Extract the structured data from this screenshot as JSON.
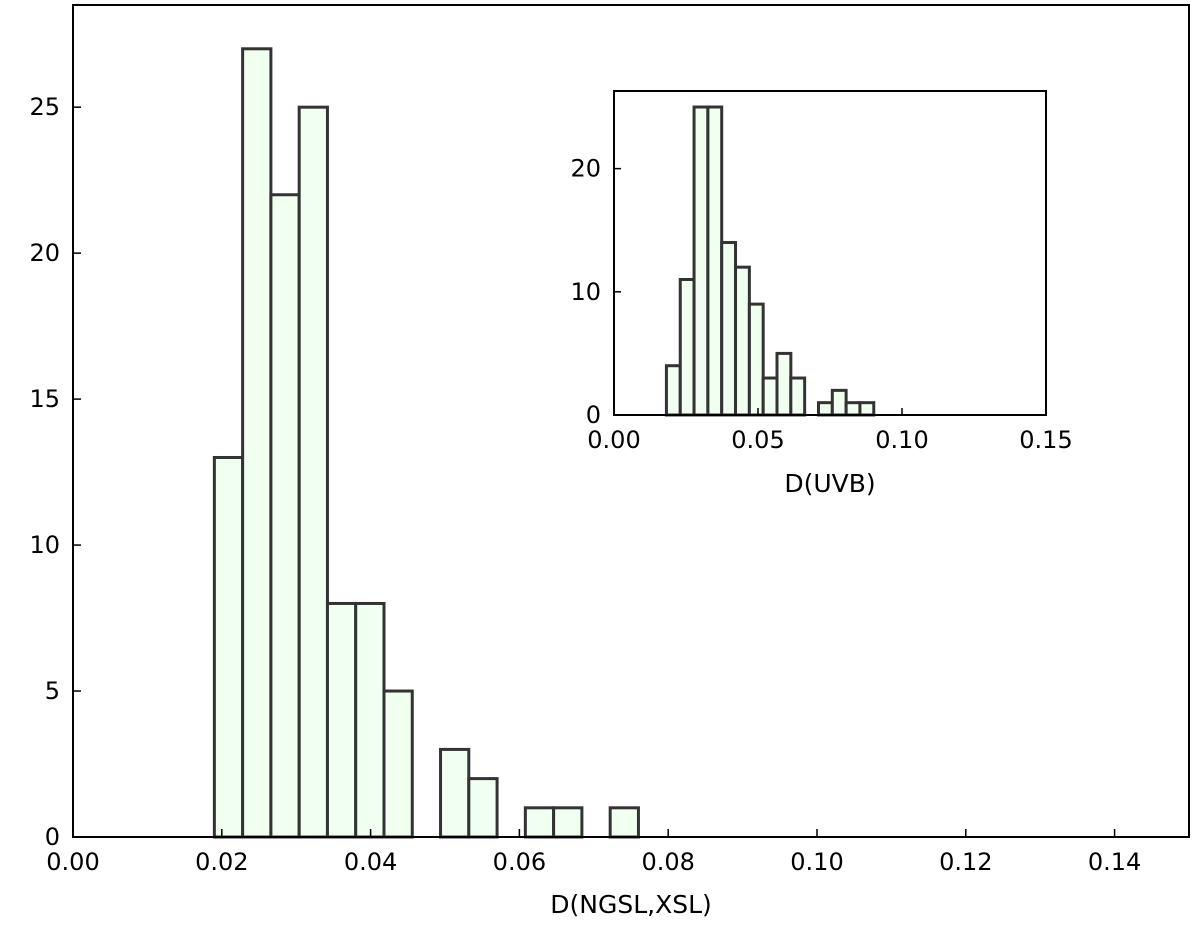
{
  "colors": {
    "bar_fill": "#f0fff0",
    "bar_edge": "#333333",
    "axis": "#000000",
    "background": "#ffffff"
  },
  "chart_data": [
    {
      "type": "bar",
      "subtype": "histogram",
      "panel": "main",
      "title": "",
      "xlabel": "D(NGSL,XSL)",
      "ylabel": "",
      "xlim": [
        0.0,
        0.15
      ],
      "ylim": [
        0,
        28.5
      ],
      "bin_width": 0.0038,
      "xticks": [
        0.0,
        0.02,
        0.04,
        0.06,
        0.08,
        0.1,
        0.12,
        0.14
      ],
      "xtick_labels": [
        "0.00",
        "0.02",
        "0.04",
        "0.06",
        "0.08",
        "0.10",
        "0.12",
        "0.14"
      ],
      "yticks": [
        0,
        5,
        10,
        15,
        20,
        25
      ],
      "ytick_labels": [
        "0",
        "5",
        "10",
        "15",
        "20",
        "25"
      ],
      "bins": [
        {
          "x0": 0.019,
          "count": 13
        },
        {
          "x0": 0.0228,
          "count": 27
        },
        {
          "x0": 0.0266,
          "count": 22
        },
        {
          "x0": 0.0304,
          "count": 25
        },
        {
          "x0": 0.0342,
          "count": 8
        },
        {
          "x0": 0.038,
          "count": 8
        },
        {
          "x0": 0.0418,
          "count": 5
        },
        {
          "x0": 0.0456,
          "count": 0
        },
        {
          "x0": 0.0494,
          "count": 3
        },
        {
          "x0": 0.0532,
          "count": 2
        },
        {
          "x0": 0.057,
          "count": 0
        },
        {
          "x0": 0.0608,
          "count": 1
        },
        {
          "x0": 0.0646,
          "count": 1
        },
        {
          "x0": 0.0684,
          "count": 0
        },
        {
          "x0": 0.0722,
          "count": 1
        }
      ],
      "grid": false,
      "legend": "none"
    },
    {
      "type": "bar",
      "subtype": "histogram",
      "panel": "inset",
      "title": "",
      "xlabel": "D(UVB)",
      "ylabel": "",
      "xlim": [
        0.0,
        0.15
      ],
      "ylim": [
        0,
        26.3
      ],
      "bin_width": 0.0048,
      "xticks": [
        0.0,
        0.05,
        0.1,
        0.15
      ],
      "xtick_labels": [
        "0.00",
        "0.05",
        "0.10",
        "0.15"
      ],
      "yticks": [
        0,
        10,
        20
      ],
      "ytick_labels": [
        "0",
        "10",
        "20"
      ],
      "bins": [
        {
          "x0": 0.0182,
          "count": 4
        },
        {
          "x0": 0.023,
          "count": 11
        },
        {
          "x0": 0.0278,
          "count": 25
        },
        {
          "x0": 0.0326,
          "count": 25
        },
        {
          "x0": 0.0374,
          "count": 14
        },
        {
          "x0": 0.0422,
          "count": 12
        },
        {
          "x0": 0.047,
          "count": 9
        },
        {
          "x0": 0.0518,
          "count": 3
        },
        {
          "x0": 0.0566,
          "count": 5
        },
        {
          "x0": 0.0614,
          "count": 3
        },
        {
          "x0": 0.0662,
          "count": 0
        },
        {
          "x0": 0.071,
          "count": 1
        },
        {
          "x0": 0.0758,
          "count": 2
        },
        {
          "x0": 0.0806,
          "count": 1
        },
        {
          "x0": 0.0854,
          "count": 1
        }
      ],
      "grid": false,
      "legend": "none"
    }
  ]
}
